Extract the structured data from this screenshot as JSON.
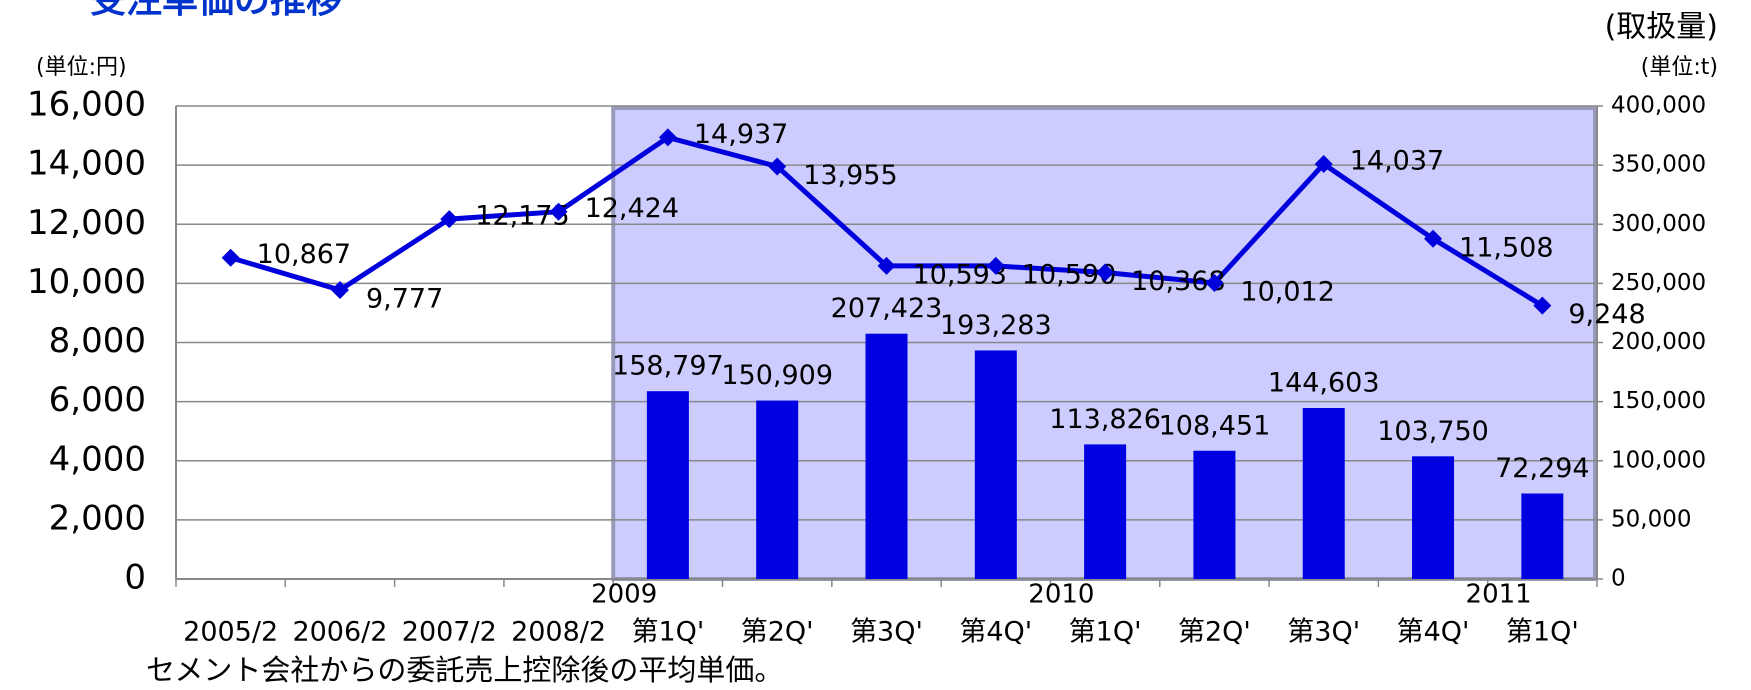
{
  "chart_data": {
    "type": "bar-line",
    "title": "受注単価の推移",
    "y_unit_label": "(単位:円)",
    "y2_title": "(取扱量)",
    "y2_unit_label": "(単位:t)",
    "footnote": "セメント会社からの委託売上控除後の平均単価。",
    "categories": [
      "2005/2",
      "2006/2",
      "2007/2",
      "2008/2",
      "第1Q'",
      "第2Q'",
      "第3Q'",
      "第4Q'",
      "第1Q'",
      "第2Q'",
      "第3Q'",
      "第4Q'",
      "第1Q'"
    ],
    "year_labels": [
      null,
      null,
      null,
      null,
      "2009",
      null,
      null,
      null,
      "2010",
      null,
      null,
      null,
      "2011"
    ],
    "series": [
      {
        "kind": "bar",
        "axis": "y2",
        "color": "#0000e0",
        "values": [
          null,
          null,
          null,
          null,
          158797,
          150909,
          207423,
          193283,
          113826,
          108451,
          144603,
          103750,
          72294
        ],
        "value_labels": [
          null,
          null,
          null,
          null,
          "158,797",
          "150,909",
          "207,423",
          "193,283",
          "113,826",
          "108,451",
          "144,603",
          "103,750",
          "72,294"
        ]
      },
      {
        "kind": "line",
        "axis": "y",
        "color": "#0000dd",
        "values": [
          10867,
          9777,
          12175,
          12424,
          14937,
          13955,
          10593,
          10590,
          10368,
          10012,
          14037,
          11508,
          9248
        ],
        "value_labels": [
          "10,867",
          "9,777",
          "12,175",
          "12,424",
          "14,937",
          "13,955",
          "10,593",
          "10,590",
          "10,368",
          "10,012",
          "14,037",
          "11,508",
          "9,248"
        ]
      }
    ],
    "ylim": [
      0,
      16000
    ],
    "yticks": [
      0,
      {
        "value": 2000,
        "label": "2,000"
      },
      {
        "value": 4000,
        "label": "4,000"
      },
      {
        "value": 6000,
        "label": "6,000"
      },
      {
        "value": 8000,
        "label": "8,000"
      },
      {
        "value": 10000,
        "label": "10,000"
      },
      {
        "value": 12000,
        "label": "12,000"
      },
      {
        "value": 14000,
        "label": "14,000"
      },
      {
        "value": 16000,
        "label": "16,000"
      }
    ],
    "y2lim": [
      0,
      400000
    ],
    "y2ticks": [
      0,
      {
        "value": 50000,
        "label": "50,000"
      },
      {
        "value": 100000,
        "label": "100,000"
      },
      {
        "value": 150000,
        "label": "150,000"
      },
      {
        "value": 200000,
        "label": "200,000"
      },
      {
        "value": 250000,
        "label": "250,000"
      },
      {
        "value": 300000,
        "label": "300,000"
      },
      {
        "value": 350000,
        "label": "350,000"
      },
      {
        "value": 400000,
        "label": "400,000"
      }
    ],
    "grid": true
  }
}
